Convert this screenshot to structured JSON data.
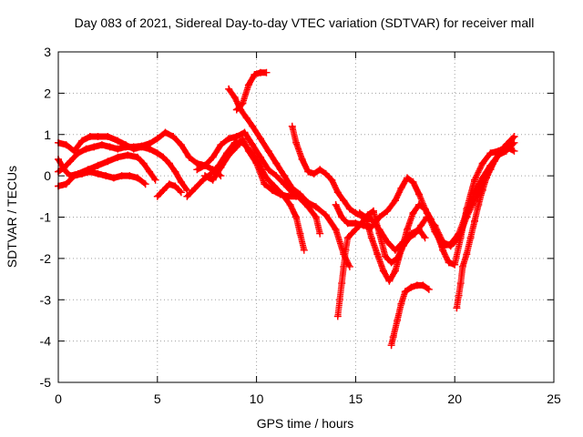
{
  "chart_data": {
    "type": "scatter",
    "title": "Day 083 of 2021, Sidereal Day-to-day VTEC variation (SDTVAR) for receiver mall",
    "xlabel": "GPS time / hours",
    "ylabel": "SDTVAR / TECUs",
    "xlim": [
      0,
      25
    ],
    "ylim": [
      -5,
      3
    ],
    "xticks": [
      "0",
      "5",
      "10",
      "15",
      "20",
      "25"
    ],
    "yticks": [
      "-5",
      "-4",
      "-3",
      "-2",
      "-1",
      "0",
      "1",
      "2",
      "3"
    ],
    "grid": true,
    "legend": "none",
    "marker": "plus",
    "color": "#ff0000",
    "series": [
      {
        "points": [
          [
            0.0,
            0.8
          ],
          [
            0.4,
            0.75
          ],
          [
            0.8,
            0.6
          ],
          [
            1.2,
            0.85
          ],
          [
            1.6,
            0.95
          ],
          [
            2.0,
            0.95
          ],
          [
            2.5,
            0.95
          ],
          [
            3.0,
            0.85
          ],
          [
            3.4,
            0.75
          ],
          [
            3.8,
            0.65
          ],
          [
            4.2,
            0.7
          ],
          [
            4.6,
            0.65
          ],
          [
            5.0,
            0.55
          ],
          [
            5.3,
            0.45
          ],
          [
            5.6,
            0.3
          ],
          [
            5.9,
            0.1
          ],
          [
            6.2,
            -0.15
          ],
          [
            6.5,
            -0.35
          ]
        ]
      },
      {
        "points": [
          [
            0.0,
            0.1
          ],
          [
            0.3,
            0.2
          ],
          [
            0.6,
            0.35
          ],
          [
            1.0,
            0.55
          ],
          [
            1.4,
            0.65
          ],
          [
            1.8,
            0.7
          ],
          [
            2.2,
            0.75
          ],
          [
            2.6,
            0.7
          ],
          [
            3.0,
            0.65
          ],
          [
            3.4,
            0.7
          ],
          [
            3.8,
            0.7
          ],
          [
            4.2,
            0.72
          ],
          [
            4.6,
            0.78
          ],
          [
            5.0,
            0.9
          ],
          [
            5.4,
            1.05
          ],
          [
            5.8,
            0.95
          ],
          [
            6.2,
            0.75
          ],
          [
            6.6,
            0.45
          ],
          [
            7.0,
            0.3
          ],
          [
            7.4,
            0.25
          ],
          [
            7.8,
            0.15
          ],
          [
            8.2,
            0.0
          ]
        ]
      },
      {
        "points": [
          [
            0.0,
            0.4
          ],
          [
            0.3,
            0.15
          ],
          [
            0.6,
            0.0
          ],
          [
            1.0,
            0.05
          ],
          [
            1.5,
            0.15
          ],
          [
            2.0,
            0.25
          ],
          [
            2.5,
            0.35
          ],
          [
            3.0,
            0.45
          ],
          [
            3.5,
            0.5
          ],
          [
            4.0,
            0.45
          ],
          [
            4.3,
            0.3
          ],
          [
            4.6,
            0.1
          ],
          [
            4.9,
            -0.1
          ]
        ]
      },
      {
        "points": [
          [
            0.0,
            -0.25
          ],
          [
            0.4,
            -0.2
          ],
          [
            0.8,
            0.0
          ],
          [
            1.2,
            0.05
          ],
          [
            1.6,
            0.1
          ],
          [
            2.0,
            0.05
          ],
          [
            2.4,
            0.0
          ],
          [
            2.8,
            -0.05
          ],
          [
            3.2,
            0.0
          ],
          [
            3.6,
            0.0
          ],
          [
            4.0,
            -0.05
          ],
          [
            4.4,
            -0.2
          ]
        ]
      },
      {
        "points": [
          [
            5.0,
            -0.5
          ],
          [
            5.3,
            -0.35
          ],
          [
            5.6,
            -0.2
          ],
          [
            5.9,
            -0.25
          ],
          [
            6.2,
            -0.4
          ]
        ]
      },
      {
        "points": [
          [
            6.5,
            -0.5
          ],
          [
            6.9,
            -0.3
          ],
          [
            7.3,
            -0.1
          ],
          [
            7.7,
            0.05
          ],
          [
            8.1,
            0.25
          ],
          [
            8.5,
            0.55
          ],
          [
            8.9,
            0.8
          ],
          [
            9.3,
            0.8
          ],
          [
            9.7,
            0.6
          ],
          [
            10.1,
            0.3
          ],
          [
            10.5,
            -0.05
          ],
          [
            10.9,
            -0.25
          ],
          [
            11.3,
            -0.45
          ],
          [
            11.7,
            -0.7
          ],
          [
            12.0,
            -1.0
          ],
          [
            12.2,
            -1.4
          ],
          [
            12.4,
            -1.8
          ]
        ]
      },
      {
        "points": [
          [
            7.0,
            0.15
          ],
          [
            7.4,
            0.25
          ],
          [
            7.8,
            0.45
          ],
          [
            8.2,
            0.75
          ],
          [
            8.6,
            0.9
          ],
          [
            9.0,
            0.95
          ],
          [
            9.4,
            1.05
          ],
          [
            9.8,
            0.75
          ],
          [
            10.2,
            0.45
          ],
          [
            10.6,
            0.15
          ],
          [
            11.0,
            0.0
          ],
          [
            11.4,
            -0.2
          ],
          [
            11.8,
            -0.4
          ],
          [
            12.2,
            -0.55
          ],
          [
            12.6,
            -0.75
          ],
          [
            13.0,
            -1.0
          ],
          [
            13.2,
            -1.4
          ]
        ]
      },
      {
        "points": [
          [
            7.4,
            0.0
          ],
          [
            7.8,
            -0.1
          ],
          [
            8.2,
            0.2
          ],
          [
            8.6,
            0.5
          ],
          [
            9.0,
            0.7
          ],
          [
            9.3,
            0.9
          ],
          [
            9.6,
            0.6
          ],
          [
            10.0,
            0.3
          ],
          [
            10.4,
            -0.2
          ],
          [
            10.8,
            -0.35
          ],
          [
            11.2,
            -0.45
          ],
          [
            11.6,
            -0.5
          ],
          [
            12.0,
            -0.5
          ]
        ]
      },
      {
        "points": [
          [
            8.6,
            2.1
          ],
          [
            8.9,
            1.9
          ],
          [
            9.2,
            1.6
          ],
          [
            9.5,
            1.4
          ],
          [
            9.8,
            1.2
          ],
          [
            10.2,
            0.9
          ],
          [
            10.6,
            0.6
          ],
          [
            11.0,
            0.3
          ],
          [
            11.4,
            0.0
          ],
          [
            11.8,
            -0.3
          ],
          [
            12.2,
            -0.45
          ],
          [
            12.6,
            -0.65
          ],
          [
            13.0,
            -0.75
          ],
          [
            13.5,
            -0.95
          ],
          [
            14.0,
            -1.3
          ],
          [
            14.4,
            -1.9
          ],
          [
            14.7,
            -2.2
          ]
        ]
      },
      {
        "points": [
          [
            9.0,
            1.6
          ],
          [
            9.3,
            1.75
          ],
          [
            9.6,
            2.2
          ],
          [
            9.9,
            2.45
          ],
          [
            10.2,
            2.5
          ],
          [
            10.5,
            2.5
          ]
        ]
      },
      {
        "points": [
          [
            11.8,
            1.2
          ],
          [
            12.0,
            0.8
          ],
          [
            12.3,
            0.4
          ],
          [
            12.6,
            0.1
          ],
          [
            12.9,
            0.05
          ],
          [
            13.2,
            0.15
          ],
          [
            13.5,
            0.05
          ],
          [
            13.8,
            -0.1
          ],
          [
            14.1,
            -0.4
          ],
          [
            14.4,
            -0.6
          ],
          [
            14.7,
            -0.8
          ],
          [
            15.0,
            -0.9
          ],
          [
            15.4,
            -1.0
          ],
          [
            15.8,
            -1.05
          ],
          [
            16.2,
            -1.3
          ],
          [
            16.6,
            -1.6
          ],
          [
            17.0,
            -1.8
          ],
          [
            17.4,
            -1.6
          ],
          [
            17.8,
            -1.4
          ],
          [
            18.2,
            -1.3
          ],
          [
            18.5,
            -1.5
          ]
        ]
      },
      {
        "points": [
          [
            14.0,
            -0.7
          ],
          [
            14.3,
            -1.0
          ],
          [
            14.6,
            -1.15
          ],
          [
            15.0,
            -1.15
          ],
          [
            15.4,
            -1.2
          ],
          [
            15.8,
            -1.25
          ],
          [
            16.2,
            -1.0
          ],
          [
            16.6,
            -0.85
          ],
          [
            17.0,
            -0.6
          ],
          [
            17.3,
            -0.3
          ],
          [
            17.6,
            -0.05
          ],
          [
            17.9,
            -0.15
          ],
          [
            18.2,
            -0.45
          ],
          [
            18.6,
            -0.9
          ],
          [
            19.0,
            -1.35
          ],
          [
            19.4,
            -1.7
          ],
          [
            19.8,
            -1.65
          ],
          [
            20.2,
            -1.4
          ],
          [
            20.6,
            -0.9
          ],
          [
            21.0,
            -0.4
          ],
          [
            21.4,
            -0.05
          ],
          [
            21.8,
            0.25
          ],
          [
            22.2,
            0.5
          ],
          [
            22.6,
            0.75
          ],
          [
            23.0,
            0.95
          ]
        ]
      },
      {
        "points": [
          [
            14.1,
            -3.4
          ],
          [
            14.2,
            -3.0
          ],
          [
            14.3,
            -2.6
          ],
          [
            14.4,
            -2.2
          ],
          [
            14.5,
            -1.8
          ],
          [
            14.6,
            -1.5
          ],
          [
            14.8,
            -1.4
          ],
          [
            15.0,
            -1.3
          ],
          [
            15.3,
            -1.15
          ],
          [
            15.6,
            -0.95
          ],
          [
            15.9,
            -0.85
          ],
          [
            16.2,
            -1.4
          ],
          [
            16.5,
            -1.95
          ],
          [
            16.8,
            -2.1
          ],
          [
            17.1,
            -2.0
          ],
          [
            17.4,
            -1.7
          ],
          [
            17.7,
            -1.5
          ],
          [
            18.0,
            -1.4
          ],
          [
            18.3,
            -1.2
          ],
          [
            18.6,
            -1.0
          ],
          [
            19.0,
            -1.2
          ],
          [
            19.4,
            -1.6
          ],
          [
            19.8,
            -1.7
          ],
          [
            20.2,
            -1.5
          ],
          [
            20.6,
            -1.0
          ],
          [
            21.0,
            -0.6
          ],
          [
            21.4,
            -0.2
          ],
          [
            21.8,
            0.2
          ],
          [
            22.2,
            0.5
          ],
          [
            22.6,
            0.6
          ],
          [
            23.0,
            0.8
          ]
        ]
      },
      {
        "points": [
          [
            15.2,
            -0.9
          ],
          [
            15.5,
            -1.0
          ],
          [
            15.8,
            -1.5
          ],
          [
            16.1,
            -1.9
          ],
          [
            16.4,
            -2.3
          ],
          [
            16.7,
            -2.55
          ],
          [
            17.0,
            -2.3
          ],
          [
            17.3,
            -1.8
          ],
          [
            17.6,
            -1.3
          ],
          [
            17.9,
            -0.9
          ],
          [
            18.2,
            -0.7
          ],
          [
            18.5,
            -0.8
          ],
          [
            18.8,
            -1.05
          ],
          [
            19.1,
            -1.4
          ],
          [
            19.4,
            -1.8
          ],
          [
            19.7,
            -2.1
          ],
          [
            20.0,
            -2.15
          ],
          [
            20.3,
            -1.5
          ],
          [
            20.6,
            -0.8
          ],
          [
            21.0,
            -0.1
          ],
          [
            21.4,
            0.3
          ],
          [
            21.8,
            0.55
          ],
          [
            22.2,
            0.6
          ],
          [
            22.6,
            0.7
          ],
          [
            23.0,
            0.6
          ]
        ]
      },
      {
        "points": [
          [
            16.8,
            -4.1
          ],
          [
            16.9,
            -3.9
          ],
          [
            17.1,
            -3.5
          ],
          [
            17.3,
            -3.1
          ],
          [
            17.5,
            -2.8
          ],
          [
            17.8,
            -2.7
          ],
          [
            18.1,
            -2.65
          ],
          [
            18.4,
            -2.65
          ],
          [
            18.7,
            -2.75
          ]
        ]
      },
      {
        "points": [
          [
            20.1,
            -3.2
          ],
          [
            20.2,
            -2.9
          ],
          [
            20.3,
            -2.6
          ],
          [
            20.4,
            -2.2
          ],
          [
            20.6,
            -1.9
          ],
          [
            20.8,
            -1.5
          ],
          [
            21.0,
            -1.1
          ],
          [
            21.2,
            -0.7
          ],
          [
            21.4,
            -0.35
          ],
          [
            21.6,
            -0.05
          ],
          [
            21.8,
            0.15
          ],
          [
            22.0,
            0.35
          ],
          [
            22.2,
            0.5
          ],
          [
            22.5,
            0.7
          ],
          [
            22.8,
            0.85
          ],
          [
            23.0,
            0.95
          ]
        ]
      }
    ]
  }
}
